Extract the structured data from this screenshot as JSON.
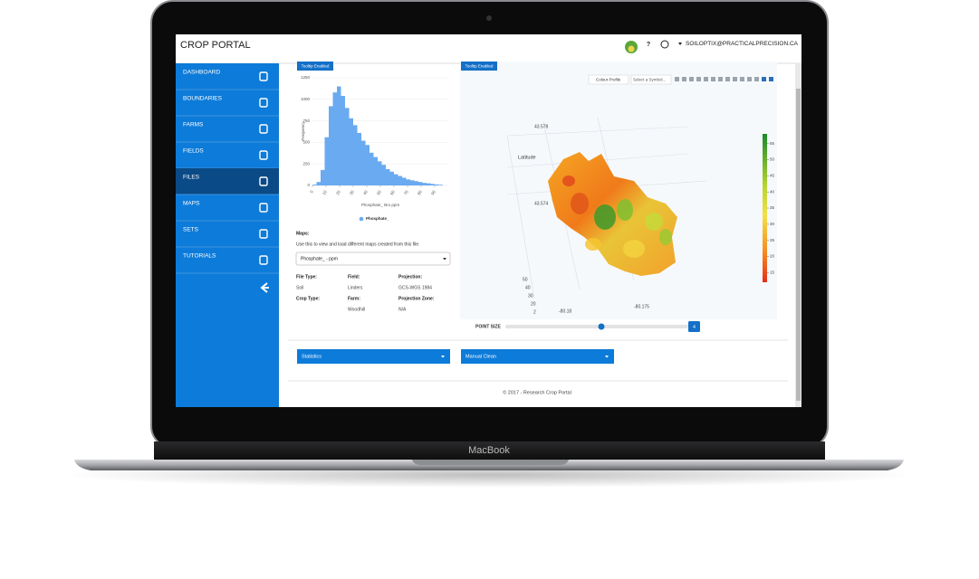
{
  "header": {
    "title": "CROP PORTAL",
    "help": "?",
    "user": "SOILOPTIX@PRACTICALPRECISION.CA"
  },
  "sidebar": {
    "items": [
      "DASHBOARD",
      "BOUNDARIES",
      "FARMS",
      "FIELDS",
      "FILES",
      "MAPS",
      "SETS",
      "TUTORIALS"
    ],
    "active_index": 4
  },
  "histogram": {
    "type": "histogram",
    "tooltip": "Tooltip Enabled",
    "ylabel": "Frequency",
    "xlabel": "Phosphate_ Bro ppm",
    "legend": "Phosphate_",
    "color": "#6aaaf0",
    "bins": [
      0,
      3,
      6,
      9,
      12,
      15,
      18,
      21,
      24,
      27,
      30,
      33,
      36,
      39,
      42,
      45,
      48,
      51,
      54,
      57,
      60,
      63,
      66,
      69,
      72,
      75,
      78,
      81,
      84,
      87,
      90,
      93,
      96
    ],
    "counts": [
      10,
      40,
      180,
      560,
      920,
      1080,
      1150,
      1040,
      900,
      780,
      700,
      610,
      520,
      470,
      380,
      330,
      280,
      240,
      190,
      160,
      130,
      110,
      90,
      70,
      60,
      50,
      40,
      30,
      25,
      18,
      12,
      8
    ],
    "xlim": [
      0,
      100
    ],
    "xticks": [
      0,
      10,
      20,
      30,
      40,
      50,
      60,
      70,
      80,
      90
    ],
    "ylim": [
      0,
      1250
    ],
    "yticks": [
      0,
      250,
      500,
      750,
      1000,
      1250
    ],
    "grid": true
  },
  "maps": {
    "label": "Maps:",
    "help": "Use this to view and load different maps created from this file.",
    "selected": "Phosphate_ - ppm"
  },
  "file_info": [
    {
      "label": "File Type:",
      "value": "Soil"
    },
    {
      "label": "Field:",
      "value": "Linders"
    },
    {
      "label": "Projection:",
      "value": "GCS-WGS 1984"
    },
    {
      "label": "Crop Type:"
    },
    {
      "label": "Farm:",
      "value": "Woodhill"
    },
    {
      "label": "Projection Zone:",
      "value": "N/A"
    }
  ],
  "map3d": {
    "tooltip": "Tooltip Enabled",
    "colour_profile": "Colour Profile",
    "symbol_placeholder": "Select a Symbol...",
    "y_axis_title": "Latitude",
    "lat_ticks": [
      "43.578",
      "43.574"
    ],
    "lon_ticks": [
      "-80.18",
      "-80.175"
    ],
    "z_ticks": [
      "50",
      "40",
      "30",
      "20",
      "2"
    ],
    "colorbar": {
      "lim": [
        12,
        58
      ],
      "ticks": [
        15,
        20,
        25,
        30,
        35,
        40,
        45,
        50,
        55
      ]
    }
  },
  "point_size": {
    "label": "POINT SIZE",
    "value": 4
  },
  "buttons": [
    "Statistics",
    "Manual Clean"
  ],
  "footer": "© 2017 - Research Crop Portal",
  "device": "MacBook"
}
